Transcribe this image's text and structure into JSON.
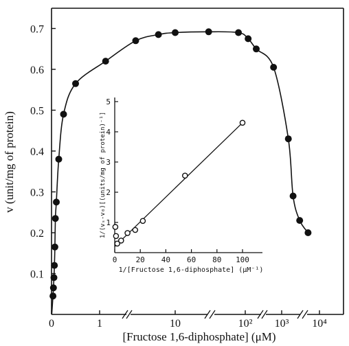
{
  "chart_data": [
    {
      "type": "scatter",
      "role": "main",
      "xlabel": "[Fructose 1,6-diphosphate] (μM)",
      "ylabel": "v (unit/mg of protein)",
      "x_scale": "segmented (linear 0–1 μM, then logarithmic, broken axis)",
      "x_tick_labels": [
        "0",
        "1",
        "10",
        "10²",
        "10³",
        "10⁴"
      ],
      "y_tick_labels": [
        "0.1",
        "0.2",
        "0.3",
        "0.4",
        "0.5",
        "0.6",
        "0.7"
      ],
      "ylim": [
        0,
        0.75
      ],
      "axis_breaks": true,
      "fitted_curve": true,
      "marker": "filled circle",
      "series": [
        {
          "x": [
            0.03,
            0.04,
            0.05,
            0.06,
            0.07,
            0.08,
            0.1,
            0.15,
            0.25,
            0.5,
            1.2,
            3,
            6,
            10,
            30,
            80,
            120,
            200,
            600,
            1500,
            2000,
            3000,
            5000
          ],
          "y": [
            0.045,
            0.065,
            0.09,
            0.12,
            0.165,
            0.235,
            0.275,
            0.38,
            0.49,
            0.565,
            0.62,
            0.67,
            0.685,
            0.69,
            0.692,
            0.69,
            0.675,
            0.65,
            0.605,
            0.43,
            0.29,
            0.23,
            0.2
          ]
        }
      ]
    },
    {
      "type": "scatter",
      "role": "inset",
      "xlabel": "1/[Fructose 1,6-diphosphate] (μM⁻¹)",
      "ylabel": "1/(vₛ-v₀)[(units/mg of protein)⁻¹]",
      "x_tick_labels": [
        "0",
        "20",
        "40",
        "60",
        "80",
        "100"
      ],
      "y_tick_labels": [
        "1",
        "2",
        "3",
        "4",
        "5"
      ],
      "xlim": [
        0,
        110
      ],
      "ylim": [
        0,
        5.2
      ],
      "marker": "open circle",
      "fitted_line": true,
      "series": [
        {
          "x": [
            0.5,
            1,
            2,
            5,
            10,
            16,
            22,
            55,
            100
          ],
          "y": [
            0.85,
            0.55,
            0.3,
            0.4,
            0.65,
            0.75,
            1.05,
            2.55,
            4.3
          ]
        }
      ]
    }
  ]
}
